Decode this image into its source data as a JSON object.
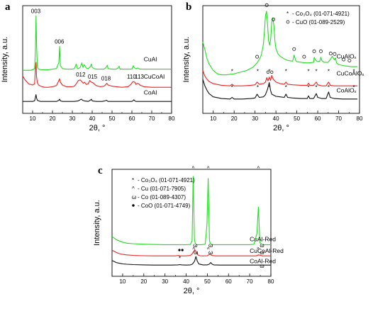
{
  "chart_data": [
    {
      "panel": "a",
      "type": "line",
      "xlabel": "2θ, °",
      "ylabel": "Intensity, a.u.",
      "xlim": [
        5,
        80
      ],
      "xticks": [
        "10",
        "20",
        "30",
        "40",
        "50",
        "60",
        "70",
        "80"
      ],
      "legend": [],
      "series": [
        {
          "name": "CuAl",
          "color": "#22dd22",
          "baseline": 3.8,
          "x": [
            5,
            6,
            7,
            8,
            9,
            10,
            11,
            11.4,
            11.7,
            12,
            12.4,
            13,
            14,
            16,
            18,
            20,
            22,
            23.2,
            23.6,
            24,
            25,
            27,
            29,
            30,
            31,
            32,
            32.6,
            33,
            34,
            34.8,
            35.4,
            36,
            37,
            38,
            39,
            39.6,
            40,
            41,
            42,
            44,
            46,
            47,
            47.6,
            48,
            50,
            52,
            53,
            53.6,
            54,
            56,
            58,
            60,
            60.3,
            60.7,
            61,
            62,
            63,
            64,
            66,
            68,
            70,
            72,
            74,
            76,
            78,
            80
          ],
          "y": [
            3.8,
            3.8,
            3.8,
            3.8,
            3.8,
            3.85,
            3.95,
            5.5,
            8.6,
            6.0,
            4.05,
            3.9,
            3.85,
            3.85,
            3.85,
            3.9,
            3.95,
            4.5,
            5.9,
            4.2,
            3.95,
            3.9,
            3.9,
            3.9,
            3.95,
            4.35,
            3.95,
            3.95,
            4.05,
            4.45,
            4.05,
            4.3,
            4.0,
            3.95,
            4.1,
            4.35,
            4.05,
            3.95,
            3.9,
            3.9,
            3.9,
            4.05,
            4.25,
            3.95,
            3.9,
            3.9,
            4.0,
            4.15,
            3.9,
            3.9,
            3.9,
            3.9,
            4.05,
            4.2,
            4.05,
            3.95,
            4.0,
            3.9,
            3.9,
            3.9,
            3.9,
            3.9,
            3.9,
            3.9,
            3.9,
            3.9
          ]
        },
        {
          "name": "CuCoAl",
          "color": "#ee2222",
          "baseline": 2.2,
          "x": [
            5,
            6,
            7,
            8,
            9,
            10,
            11,
            11.4,
            11.7,
            12,
            12.4,
            13,
            14,
            16,
            18,
            20,
            22,
            23.2,
            23.6,
            24,
            25,
            27,
            29,
            30,
            31,
            32,
            33,
            34,
            34.8,
            35.6,
            36.2,
            37,
            38,
            38.8,
            39.6,
            40.4,
            41,
            42,
            44,
            46,
            46.6,
            47.4,
            48,
            50,
            52,
            55,
            58,
            59.5,
            60.5,
            61.5,
            62,
            62.8,
            63.5,
            64,
            66,
            70,
            74,
            78,
            80
          ],
          "y": [
            3.3,
            3.0,
            2.8,
            2.6,
            2.55,
            2.5,
            2.6,
            3.9,
            4.5,
            3.2,
            2.7,
            2.5,
            2.4,
            2.3,
            2.3,
            2.35,
            2.45,
            2.9,
            3.05,
            2.75,
            2.5,
            2.35,
            2.35,
            2.35,
            2.4,
            2.6,
            2.9,
            2.95,
            2.8,
            2.65,
            2.75,
            2.55,
            2.6,
            2.9,
            2.75,
            2.7,
            2.6,
            2.45,
            2.35,
            2.4,
            2.5,
            2.65,
            2.5,
            2.4,
            2.35,
            2.3,
            2.35,
            2.55,
            2.8,
            2.75,
            2.55,
            2.65,
            2.6,
            2.5,
            2.35,
            2.3,
            2.3,
            2.3,
            2.3
          ]
        },
        {
          "name": "CoAl",
          "color": "#111111",
          "baseline": 1.0,
          "x": [
            5,
            6,
            7,
            8,
            9,
            10,
            11,
            11.4,
            11.7,
            12,
            12.4,
            13,
            14,
            16,
            18,
            20,
            22,
            23.2,
            23.6,
            24,
            25,
            28,
            31,
            33,
            34,
            34.6,
            35.2,
            36,
            38,
            39,
            39.6,
            40,
            42,
            45,
            46.4,
            47.2,
            48,
            52,
            56,
            60,
            60.5,
            61,
            61.5,
            62,
            63,
            66,
            70,
            74,
            78,
            80
          ],
          "y": [
            1.05,
            1.05,
            1.05,
            1.05,
            1.05,
            1.05,
            1.1,
            1.4,
            1.65,
            1.35,
            1.15,
            1.1,
            1.05,
            1.05,
            1.05,
            1.05,
            1.05,
            1.15,
            1.25,
            1.1,
            1.05,
            1.05,
            1.05,
            1.1,
            1.2,
            1.25,
            1.15,
            1.1,
            1.05,
            1.15,
            1.25,
            1.1,
            1.05,
            1.05,
            1.1,
            1.15,
            1.05,
            1.05,
            1.05,
            1.05,
            1.1,
            1.2,
            1.1,
            1.05,
            1.05,
            1.05,
            1.05,
            1.05,
            1.05,
            1.05
          ]
        }
      ],
      "annotations": [
        {
          "text": "003",
          "x": 11.6,
          "y": 8.85
        },
        {
          "text": "006",
          "x": 23.5,
          "y": 6.15
        },
        {
          "text": "012",
          "x": 34.2,
          "y": 3.25
        },
        {
          "text": "015",
          "x": 40.2,
          "y": 3.05
        },
        {
          "text": "018",
          "x": 47.0,
          "y": 2.9
        },
        {
          "text": "110",
          "x": 59.8,
          "y": 3.05
        },
        {
          "text": "113",
          "x": 63.8,
          "y": 3.05
        }
      ]
    },
    {
      "panel": "b",
      "type": "line",
      "xlabel": "2θ, °",
      "ylabel": "Intensity, a.u.",
      "xlim": [
        5,
        80
      ],
      "xticks": [
        "10",
        "20",
        "30",
        "40",
        "50",
        "60",
        "70",
        "80"
      ],
      "legend": [
        {
          "marker": "*",
          "text": "- Co₃O₄ (01-071-4921)"
        },
        {
          "marker": "o",
          "text": "- CuO  (01-089-2529)"
        }
      ],
      "series": [
        {
          "name": "CuAlOₓ",
          "color": "#22dd22",
          "x": [
            5,
            6,
            7,
            8,
            10,
            12,
            14,
            16,
            18,
            20,
            22,
            24,
            26,
            28,
            29,
            30,
            31,
            32,
            33,
            34,
            34.5,
            35,
            35.5,
            36,
            36.5,
            37,
            37.5,
            38,
            38.5,
            39,
            39.5,
            40,
            41,
            42,
            44,
            46,
            48,
            48.7,
            49.5,
            50,
            52,
            54,
            56,
            58,
            58.3,
            59,
            60,
            61,
            61.5,
            62,
            63,
            65,
            66,
            67,
            68,
            68.5,
            69,
            70,
            72,
            74,
            76,
            78,
            79
          ],
          "y": [
            6.5,
            5.8,
            5.0,
            4.5,
            3.9,
            3.6,
            3.5,
            3.5,
            3.55,
            3.6,
            3.7,
            3.8,
            3.9,
            4.1,
            4.2,
            4.4,
            4.6,
            4.9,
            5.3,
            6.3,
            7.5,
            8.9,
            9.3,
            8.1,
            6.6,
            6.2,
            6.8,
            8.3,
            8.7,
            8.0,
            6.6,
            5.9,
            5.4,
            5.2,
            4.95,
            4.8,
            4.75,
            5.3,
            4.8,
            4.7,
            4.65,
            4.6,
            4.6,
            4.65,
            5.1,
            4.85,
            4.7,
            4.75,
            5.1,
            4.8,
            4.65,
            4.65,
            4.9,
            5.2,
            4.85,
            5.05,
            4.6,
            4.45,
            4.35,
            4.3,
            4.25,
            4.25,
            4.25
          ]
        },
        {
          "name": "CuCoAlOₓ",
          "color": "#ee2222",
          "x": [
            5,
            6,
            7,
            8,
            10,
            14,
            18,
            19,
            20,
            24,
            28,
            30,
            31,
            32,
            34,
            35,
            35.6,
            36.2,
            36.8,
            37.4,
            38,
            38.6,
            39.2,
            40,
            42,
            44,
            44.8,
            45.6,
            48,
            52,
            55,
            55.6,
            56.2,
            58,
            59.3,
            60,
            62,
            64,
            65.2,
            66,
            68,
            72,
            76,
            78,
            79
          ],
          "y": [
            3.9,
            3.4,
            3.1,
            2.9,
            2.7,
            2.55,
            2.5,
            2.65,
            2.5,
            2.5,
            2.55,
            2.6,
            2.85,
            2.65,
            2.7,
            2.85,
            3.25,
            2.95,
            3.3,
            3.0,
            3.45,
            3.15,
            3.0,
            2.85,
            2.7,
            2.65,
            2.85,
            2.65,
            2.6,
            2.55,
            2.55,
            2.75,
            2.55,
            2.55,
            2.85,
            2.6,
            2.5,
            2.5,
            2.85,
            2.55,
            2.5,
            2.5,
            2.5,
            2.5,
            2.5
          ]
        },
        {
          "name": "CoAlOₓ",
          "color": "#111111",
          "x": [
            5,
            6,
            7,
            8,
            10,
            14,
            18,
            19,
            20,
            24,
            28,
            30,
            31,
            32,
            34,
            35,
            36,
            36.8,
            37.4,
            38,
            40,
            42,
            44,
            44.8,
            45.6,
            48,
            52,
            55,
            55.6,
            56.2,
            58,
            59.3,
            60,
            62,
            64,
            65.2,
            66,
            68,
            72,
            76,
            78,
            79
          ],
          "y": [
            3.1,
            2.5,
            2.1,
            1.8,
            1.5,
            1.35,
            1.3,
            1.45,
            1.3,
            1.3,
            1.35,
            1.4,
            1.75,
            1.45,
            1.5,
            1.7,
            2.2,
            2.8,
            2.1,
            1.75,
            1.55,
            1.5,
            1.45,
            1.75,
            1.45,
            1.4,
            1.35,
            1.35,
            1.6,
            1.35,
            1.35,
            1.8,
            1.45,
            1.35,
            1.35,
            1.95,
            1.45,
            1.35,
            1.3,
            1.3,
            1.3,
            1.3
          ]
        }
      ],
      "marks": [
        {
          "sym": "o",
          "x": [
            31.0,
            35.6,
            38.8,
            48.7,
            53.5,
            58.3,
            61.5,
            66.2,
            68.1,
            72.4,
            75.2
          ]
        },
        {
          "sym": "*",
          "x": [
            19.0,
            31.3,
            36.9,
            44.8,
            55.6,
            59.3,
            65.2,
            77.3
          ]
        }
      ]
    },
    {
      "panel": "c",
      "type": "line",
      "xlabel": "2θ, °",
      "ylabel": "Intensity, a.u.",
      "xlim": [
        5,
        80
      ],
      "xticks": [
        "10",
        "20",
        "30",
        "40",
        "50",
        "60",
        "70",
        "80"
      ],
      "legend": [
        {
          "marker": "*",
          "text": "- Co₃O₄ (01-071-4921)"
        },
        {
          "marker": "^",
          "text": "- Cu      (01-071-7905)"
        },
        {
          "marker": "ω",
          "text": "- Co      (01-089-4307)"
        },
        {
          "marker": "•",
          "text": "- CoO    (01-071-4749)"
        }
      ],
      "series": [
        {
          "name": "CuAl-Red",
          "color": "#22dd22",
          "x": [
            5,
            6,
            7,
            8,
            10,
            12,
            15,
            20,
            25,
            30,
            35,
            40,
            42,
            42.8,
            43.3,
            43.9,
            44.4,
            45,
            47,
            49,
            49.8,
            50.4,
            51,
            51.6,
            53,
            56,
            60,
            65,
            70,
            72,
            73.4,
            74.1,
            74.8,
            76,
            78,
            80
          ],
          "y": [
            3.9,
            3.75,
            3.6,
            3.5,
            3.35,
            3.25,
            3.2,
            3.15,
            3.12,
            3.1,
            3.1,
            3.1,
            3.12,
            3.5,
            9.8,
            3.6,
            3.15,
            3.1,
            3.1,
            3.15,
            5.0,
            9.6,
            3.5,
            3.12,
            3.1,
            3.1,
            3.1,
            3.1,
            3.1,
            3.15,
            4.2,
            6.8,
            3.3,
            3.1,
            3.1,
            3.1
          ]
        },
        {
          "name": "CuCoAl-Red",
          "color": "#ee2222",
          "x": [
            5,
            6,
            7,
            8,
            10,
            12,
            15,
            20,
            25,
            30,
            35,
            36.5,
            37,
            38,
            40,
            42,
            42.8,
            43.4,
            44.1,
            44.8,
            45.5,
            46.5,
            48,
            50,
            50.6,
            51.3,
            52,
            54,
            58,
            62,
            66,
            70,
            73,
            74.2,
            75.2,
            76,
            78,
            80
          ],
          "y": [
            2.55,
            2.45,
            2.35,
            2.25,
            2.15,
            2.1,
            2.05,
            2.02,
            2.0,
            2.0,
            2.0,
            2.05,
            2.0,
            2.0,
            2.0,
            2.05,
            2.2,
            2.4,
            2.6,
            2.35,
            2.1,
            2.02,
            2.0,
            2.02,
            2.1,
            2.2,
            2.05,
            2.0,
            2.0,
            2.0,
            2.0,
            2.0,
            2.0,
            2.1,
            2.05,
            2.0,
            2.0,
            2.0
          ]
        },
        {
          "name": "CoAl-Red",
          "color": "#111111",
          "x": [
            5,
            6,
            7,
            8,
            10,
            12,
            15,
            20,
            25,
            30,
            33,
            36,
            37,
            38,
            40,
            42,
            43,
            44,
            44.6,
            45.2,
            46,
            48,
            50,
            51,
            51.6,
            52.2,
            53,
            56,
            60,
            65,
            70,
            75,
            80
          ],
          "y": [
            1.55,
            1.45,
            1.35,
            1.3,
            1.22,
            1.18,
            1.15,
            1.12,
            1.1,
            1.1,
            1.1,
            1.12,
            1.15,
            1.12,
            1.1,
            1.12,
            1.2,
            1.5,
            1.95,
            1.5,
            1.2,
            1.12,
            1.12,
            1.2,
            1.35,
            1.2,
            1.12,
            1.1,
            1.1,
            1.1,
            1.1,
            1.1,
            1.1
          ]
        }
      ],
      "marks": [
        {
          "sym": "^",
          "x": [
            43.3,
            50.4,
            74.1
          ],
          "y": 10.4
        },
        {
          "sym": "ω",
          "x": [
            44.3,
            51.6,
            75.8
          ],
          "y": 2.85
        },
        {
          "sym": "^",
          "x": [
            43.6,
            50.4,
            74.0
          ],
          "y": 2.45
        },
        {
          "sym": "•",
          "x": [
            36.8,
            38.2
          ],
          "y": 2.4
        },
        {
          "sym": "*",
          "x": [
            37.0
          ],
          "y": 1.55
        },
        {
          "sym": "ω",
          "x": [
            44.6,
            51.6,
            75.8
          ],
          "y": 2.15
        },
        {
          "sym": "ω",
          "x": [
            75.8
          ],
          "y": 0.85
        }
      ]
    }
  ],
  "figure": {
    "panel_a_letter": "a",
    "panel_b_letter": "b",
    "panel_c_letter": "c"
  }
}
